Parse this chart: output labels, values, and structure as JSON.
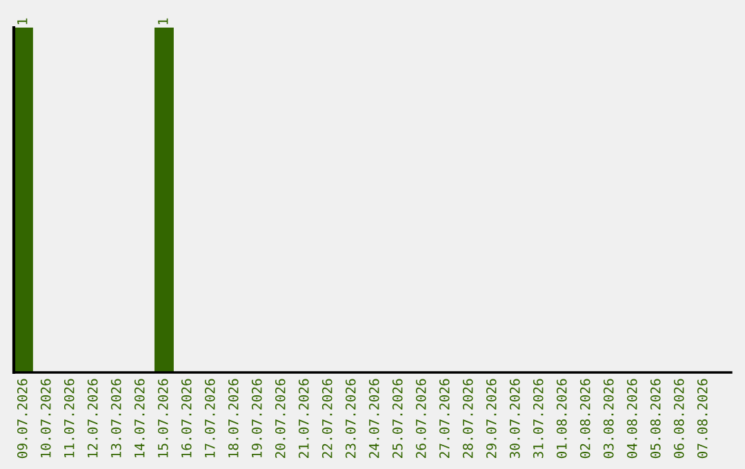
{
  "chart_data": {
    "type": "bar",
    "categories": [
      "09.07.2026",
      "10.07.2026",
      "11.07.2026",
      "12.07.2026",
      "13.07.2026",
      "14.07.2026",
      "15.07.2026",
      "16.07.2026",
      "17.07.2026",
      "18.07.2026",
      "19.07.2026",
      "20.07.2026",
      "21.07.2026",
      "22.07.2026",
      "23.07.2026",
      "24.07.2026",
      "25.07.2026",
      "26.07.2026",
      "27.07.2026",
      "28.07.2026",
      "29.07.2026",
      "30.07.2026",
      "31.07.2026",
      "01.08.2026",
      "02.08.2026",
      "03.08.2026",
      "04.08.2026",
      "05.08.2026",
      "06.08.2026",
      "07.08.2026"
    ],
    "values": [
      1,
      0,
      0,
      0,
      0,
      0,
      1,
      0,
      0,
      0,
      0,
      0,
      0,
      0,
      0,
      0,
      0,
      0,
      0,
      0,
      0,
      0,
      0,
      0,
      0,
      0,
      0,
      0,
      0,
      0
    ],
    "value_labels": [
      "1",
      null,
      null,
      null,
      null,
      null,
      "1",
      null,
      null,
      null,
      null,
      null,
      null,
      null,
      null,
      null,
      null,
      null,
      null,
      null,
      null,
      null,
      null,
      null,
      null,
      null,
      null,
      null,
      null,
      null
    ],
    "color": "#336600",
    "ylim": [
      0,
      1
    ],
    "tick_labels": "x",
    "grid": false,
    "legend": false
  }
}
